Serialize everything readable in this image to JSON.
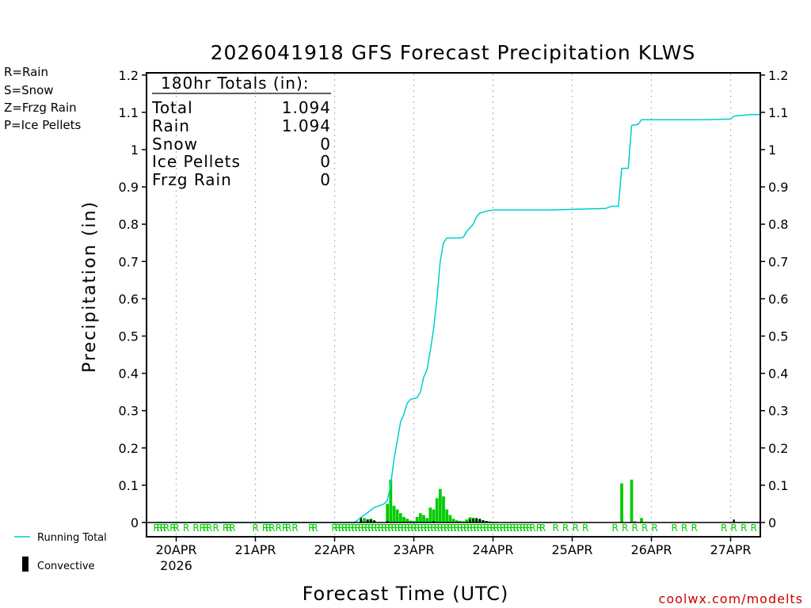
{
  "chart_data": {
    "type": "bar+line",
    "title": "2026041918 GFS Forecast Precipitation KLWS",
    "ylabel": "Precipitation (in)",
    "xlabel": "Forecast Time (UTC)",
    "ylim": [
      0,
      1.2
    ],
    "xlim_hours": [
      -3,
      183
    ],
    "y_ticks": [
      "0",
      "0.1",
      "0.2",
      "0.3",
      "0.4",
      "0.5",
      "0.6",
      "0.7",
      "0.8",
      "0.9",
      "1",
      "1.1",
      "1.2"
    ],
    "x_ticks": [
      {
        "hour": 6,
        "label": "20APR"
      },
      {
        "hour": 30,
        "label": "21APR"
      },
      {
        "hour": 54,
        "label": "22APR"
      },
      {
        "hour": 78,
        "label": "23APR"
      },
      {
        "hour": 102,
        "label": "24APR"
      },
      {
        "hour": 126,
        "label": "25APR"
      },
      {
        "hour": 150,
        "label": "26APR"
      },
      {
        "hour": 174,
        "label": "27APR"
      }
    ],
    "year_label": "2026",
    "running_total": [
      [
        0,
        0
      ],
      [
        60,
        0
      ],
      [
        63,
        0.02
      ],
      [
        66,
        0.04
      ],
      [
        69,
        0.05
      ],
      [
        70,
        0.06
      ],
      [
        71,
        0.1
      ],
      [
        72,
        0.17
      ],
      [
        73,
        0.22
      ],
      [
        74,
        0.27
      ],
      [
        75,
        0.29
      ],
      [
        76,
        0.32
      ],
      [
        77,
        0.33
      ],
      [
        79,
        0.335
      ],
      [
        80,
        0.35
      ],
      [
        81,
        0.39
      ],
      [
        82,
        0.41
      ],
      [
        83,
        0.46
      ],
      [
        84,
        0.52
      ],
      [
        85,
        0.6
      ],
      [
        86,
        0.7
      ],
      [
        87,
        0.75
      ],
      [
        88,
        0.763
      ],
      [
        92,
        0.763
      ],
      [
        93,
        0.765
      ],
      [
        94,
        0.78
      ],
      [
        95,
        0.79
      ],
      [
        96,
        0.8
      ],
      [
        97,
        0.82
      ],
      [
        98,
        0.83
      ],
      [
        100,
        0.835
      ],
      [
        102,
        0.838
      ],
      [
        120,
        0.838
      ],
      [
        126,
        0.84
      ],
      [
        136,
        0.842
      ],
      [
        138,
        0.848
      ],
      [
        140,
        0.848
      ],
      [
        141,
        0.95
      ],
      [
        143,
        0.95
      ],
      [
        144,
        1.065
      ],
      [
        146,
        1.068
      ],
      [
        147,
        1.08
      ],
      [
        165,
        1.08
      ],
      [
        174,
        1.082
      ],
      [
        175,
        1.09
      ],
      [
        180,
        1.094
      ],
      [
        183,
        1.094
      ]
    ],
    "rain_bars": [
      [
        62,
        0.006
      ],
      [
        63,
        0.012
      ],
      [
        64,
        0.008
      ],
      [
        65,
        0.01
      ],
      [
        66,
        0.005
      ],
      [
        70,
        0.05
      ],
      [
        71,
        0.115
      ],
      [
        72,
        0.045
      ],
      [
        73,
        0.035
      ],
      [
        74,
        0.025
      ],
      [
        75,
        0.015
      ],
      [
        76,
        0.01
      ],
      [
        77,
        0.005
      ],
      [
        78,
        0.004
      ],
      [
        79,
        0.015
      ],
      [
        80,
        0.025
      ],
      [
        81,
        0.02
      ],
      [
        82,
        0.012
      ],
      [
        83,
        0.04
      ],
      [
        84,
        0.035
      ],
      [
        85,
        0.065
      ],
      [
        86,
        0.09
      ],
      [
        87,
        0.07
      ],
      [
        88,
        0.035
      ],
      [
        89,
        0.02
      ],
      [
        90,
        0.01
      ],
      [
        91,
        0.006
      ],
      [
        92,
        0.004
      ],
      [
        93,
        0.003
      ],
      [
        94,
        0.008
      ],
      [
        95,
        0.014
      ],
      [
        96,
        0.013
      ],
      [
        97,
        0.01
      ],
      [
        98,
        0.008
      ],
      [
        99,
        0.006
      ],
      [
        100,
        0.004
      ],
      [
        101,
        0.003
      ],
      [
        102,
        0.002
      ],
      [
        103,
        0.002
      ],
      [
        104,
        0.001
      ],
      [
        105,
        0.001
      ],
      [
        106,
        0.001
      ],
      [
        108,
        0.001
      ],
      [
        110,
        0.001
      ],
      [
        141,
        0.105
      ],
      [
        144,
        0.115
      ],
      [
        147,
        0.012
      ]
    ],
    "convective_bars": [
      [
        62,
        0.015
      ],
      [
        64,
        0.008
      ],
      [
        65,
        0.008
      ],
      [
        66,
        0.006
      ],
      [
        70,
        0.004
      ],
      [
        84,
        0.004
      ],
      [
        95,
        0.008
      ],
      [
        96,
        0.01
      ],
      [
        97,
        0.012
      ],
      [
        98,
        0.01
      ],
      [
        99,
        0.006
      ],
      [
        100,
        0.004
      ],
      [
        175,
        0.008
      ],
      [
        145,
        0.003
      ]
    ],
    "ptype_markers": [
      {
        "hour": 0,
        "type": "R"
      },
      {
        "hour": 1,
        "type": "R"
      },
      {
        "hour": 2,
        "type": "R"
      },
      {
        "hour": 3,
        "type": "R"
      },
      {
        "hour": 5,
        "type": "R"
      },
      {
        "hour": 6,
        "type": "R"
      },
      {
        "hour": 9,
        "type": "R"
      },
      {
        "hour": 12,
        "type": "R"
      },
      {
        "hour": 14,
        "type": "R"
      },
      {
        "hour": 15,
        "type": "R"
      },
      {
        "hour": 16,
        "type": "R"
      },
      {
        "hour": 18,
        "type": "R"
      },
      {
        "hour": 21,
        "type": "R"
      },
      {
        "hour": 22,
        "type": "R"
      },
      {
        "hour": 23,
        "type": "R"
      },
      {
        "hour": 30,
        "type": "R"
      },
      {
        "hour": 33,
        "type": "R"
      },
      {
        "hour": 34,
        "type": "R"
      },
      {
        "hour": 35,
        "type": "R"
      },
      {
        "hour": 37,
        "type": "R"
      },
      {
        "hour": 39,
        "type": "R"
      },
      {
        "hour": 40,
        "type": "R"
      },
      {
        "hour": 42,
        "type": "R"
      },
      {
        "hour": 47,
        "type": "R"
      },
      {
        "hour": 48,
        "type": "R"
      },
      {
        "hour": 54,
        "type": "R"
      },
      {
        "hour": 55,
        "type": "R"
      },
      {
        "hour": 56,
        "type": "R"
      },
      {
        "hour": 57,
        "type": "R"
      },
      {
        "hour": 58,
        "type": "R"
      },
      {
        "hour": 59,
        "type": "R"
      },
      {
        "hour": 60,
        "type": "R"
      },
      {
        "hour": 61,
        "type": "R"
      },
      {
        "hour": 62,
        "type": "R"
      },
      {
        "hour": 63,
        "type": "R"
      },
      {
        "hour": 64,
        "type": "R"
      },
      {
        "hour": 65,
        "type": "R"
      },
      {
        "hour": 66,
        "type": "R"
      },
      {
        "hour": 67,
        "type": "R"
      },
      {
        "hour": 68,
        "type": "R"
      },
      {
        "hour": 69,
        "type": "R"
      },
      {
        "hour": 70,
        "type": "R"
      },
      {
        "hour": 71,
        "type": "R"
      },
      {
        "hour": 72,
        "type": "R"
      },
      {
        "hour": 73,
        "type": "R"
      },
      {
        "hour": 74,
        "type": "R"
      },
      {
        "hour": 75,
        "type": "R"
      },
      {
        "hour": 76,
        "type": "R"
      },
      {
        "hour": 77,
        "type": "R"
      },
      {
        "hour": 78,
        "type": "R"
      },
      {
        "hour": 79,
        "type": "R"
      },
      {
        "hour": 80,
        "type": "R"
      },
      {
        "hour": 81,
        "type": "R"
      },
      {
        "hour": 82,
        "type": "R"
      },
      {
        "hour": 83,
        "type": "R"
      },
      {
        "hour": 84,
        "type": "R"
      },
      {
        "hour": 85,
        "type": "R"
      },
      {
        "hour": 86,
        "type": "R"
      },
      {
        "hour": 87,
        "type": "R"
      },
      {
        "hour": 88,
        "type": "R"
      },
      {
        "hour": 89,
        "type": "R"
      },
      {
        "hour": 90,
        "type": "R"
      },
      {
        "hour": 91,
        "type": "R"
      },
      {
        "hour": 92,
        "type": "R"
      },
      {
        "hour": 93,
        "type": "R"
      },
      {
        "hour": 94,
        "type": "R"
      },
      {
        "hour": 95,
        "type": "R"
      },
      {
        "hour": 96,
        "type": "R"
      },
      {
        "hour": 97,
        "type": "R"
      },
      {
        "hour": 98,
        "type": "R"
      },
      {
        "hour": 99,
        "type": "R"
      },
      {
        "hour": 100,
        "type": "R"
      },
      {
        "hour": 101,
        "type": "R"
      },
      {
        "hour": 102,
        "type": "R"
      },
      {
        "hour": 103,
        "type": "R"
      },
      {
        "hour": 104,
        "type": "R"
      },
      {
        "hour": 105,
        "type": "R"
      },
      {
        "hour": 106,
        "type": "R"
      },
      {
        "hour": 107,
        "type": "R"
      },
      {
        "hour": 108,
        "type": "R"
      },
      {
        "hour": 109,
        "type": "R"
      },
      {
        "hour": 110,
        "type": "R"
      },
      {
        "hour": 111,
        "type": "R"
      },
      {
        "hour": 112,
        "type": "R"
      },
      {
        "hour": 113,
        "type": "R"
      },
      {
        "hour": 114,
        "type": "R"
      },
      {
        "hour": 116,
        "type": "R"
      },
      {
        "hour": 117,
        "type": "R"
      },
      {
        "hour": 121,
        "type": "R"
      },
      {
        "hour": 124,
        "type": "R"
      },
      {
        "hour": 127,
        "type": "R"
      },
      {
        "hour": 130,
        "type": "R"
      },
      {
        "hour": 139,
        "type": "R"
      },
      {
        "hour": 142,
        "type": "R"
      },
      {
        "hour": 145,
        "type": "R"
      },
      {
        "hour": 148,
        "type": "R"
      },
      {
        "hour": 151,
        "type": "R"
      },
      {
        "hour": 157,
        "type": "R"
      },
      {
        "hour": 160,
        "type": "R"
      },
      {
        "hour": 163,
        "type": "R"
      },
      {
        "hour": 172,
        "type": "R"
      },
      {
        "hour": 175,
        "type": "R"
      },
      {
        "hour": 178,
        "type": "R"
      },
      {
        "hour": 181,
        "type": "R"
      }
    ],
    "colors": {
      "running_total": "#00cccc",
      "rain": "#00cc00",
      "convective": "#000000",
      "snow": "#3333ff",
      "frzg_rain": "#ff8c1a",
      "ice_pellets": "#ff1a8c",
      "grid": "#b4b4b4"
    }
  },
  "totals_box": {
    "header": "180hr Totals (in):",
    "rows": [
      {
        "label": "Total",
        "value": "1.094"
      },
      {
        "label": "Rain",
        "value": "1.094"
      },
      {
        "label": "Snow",
        "value": "0"
      },
      {
        "label": "Ice Pellets",
        "value": "0"
      },
      {
        "label": "Frzg Rain",
        "value": "0"
      }
    ]
  },
  "type_legend": [
    {
      "text": "R=Rain",
      "color": "#00cc00"
    },
    {
      "text": "S=Snow",
      "color": "#3333ff"
    },
    {
      "text": "Z=Frzg Rain",
      "color": "#ff8c1a"
    },
    {
      "text": "P=Ice Pellets",
      "color": "#ff1a8c"
    }
  ],
  "series_legend": {
    "running_total": "Running Total",
    "convective": "Convective"
  },
  "credit": "coolwx.com/modelts"
}
